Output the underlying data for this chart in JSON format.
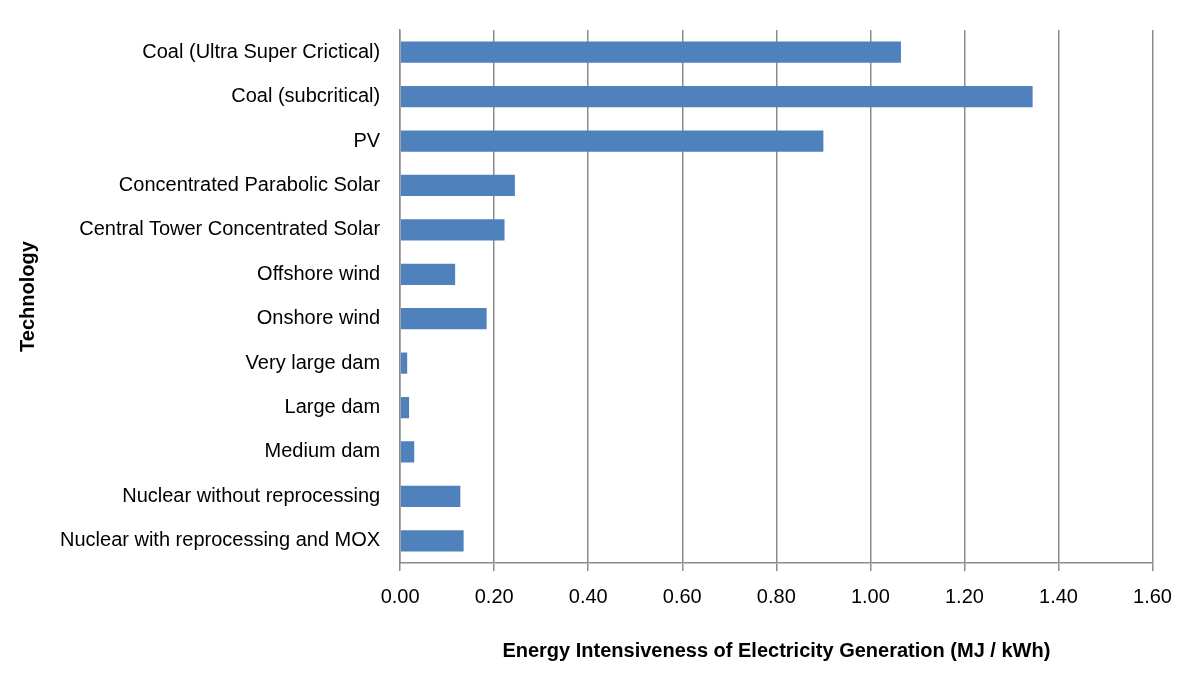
{
  "chart_data": {
    "type": "bar",
    "orientation": "horizontal",
    "xlabel": "Energy Intensiveness of Electricity Generation (MJ / kWh)",
    "ylabel": "Technology",
    "categories": [
      "Coal (Ultra Super Crictical)",
      "Coal (subcritical)",
      "PV",
      "Concentrated Parabolic Solar",
      "Central Tower Concentrated Solar",
      "Offshore wind",
      "Onshore wind",
      "Very large dam",
      "Large dam",
      "Medium dam",
      "Nuclear without reprocessing",
      "Nuclear with reprocessing and MOX"
    ],
    "values": [
      1.065,
      1.345,
      0.9,
      0.244,
      0.222,
      0.117,
      0.184,
      0.015,
      0.019,
      0.03,
      0.128,
      0.135
    ],
    "color": "#4f81bd",
    "xlim": [
      0,
      1.6
    ],
    "xticks": [
      {
        "value": 0,
        "label": "0.00"
      },
      {
        "value": 0.2,
        "label": "0.20"
      },
      {
        "value": 0.4,
        "label": "0.40"
      },
      {
        "value": 0.6,
        "label": "0.60"
      },
      {
        "value": 0.8,
        "label": "0.80"
      },
      {
        "value": 1,
        "label": "1.00"
      },
      {
        "value": 1.2,
        "label": "1.20"
      },
      {
        "value": 1.4,
        "label": "1.40"
      },
      {
        "value": 1.6,
        "label": "1.60"
      }
    ],
    "grid": "x",
    "legend": false
  }
}
